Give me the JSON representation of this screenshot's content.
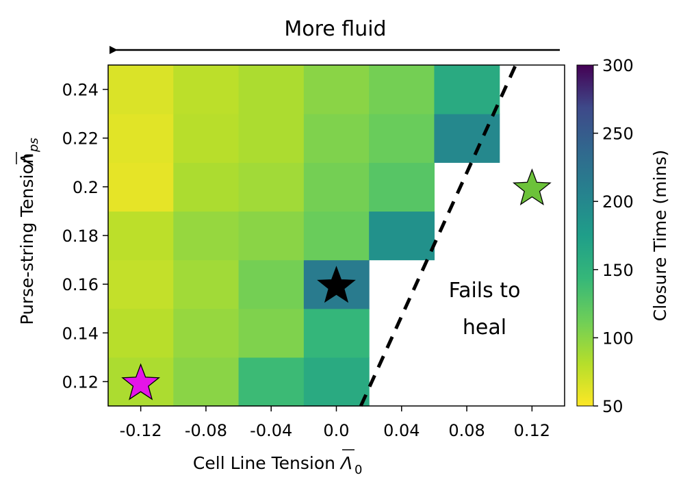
{
  "chart_data": {
    "type": "heatmap",
    "title": "",
    "xlabel": "Cell Line Tension",
    "xlabel_symbol": "Λ",
    "xlabel_subscript": "0",
    "ylabel": "Purse-string Tension",
    "ylabel_symbol": "Λ",
    "ylabel_subscript": "ps",
    "x_ticks": [
      "-0.12",
      "-0.08",
      "-0.04",
      "0.0",
      "0.04",
      "0.08",
      "0.12"
    ],
    "y_ticks": [
      "0.12",
      "0.14",
      "0.16",
      "0.18",
      "0.2",
      "0.22",
      "0.24"
    ],
    "x": [
      -0.12,
      -0.08,
      -0.04,
      0.0,
      0.04,
      0.08,
      0.12
    ],
    "y": [
      0.12,
      0.14,
      0.16,
      0.18,
      0.2,
      0.22,
      0.24
    ],
    "xlim": [
      -0.14,
      0.14
    ],
    "ylim": [
      0.11,
      0.25
    ],
    "values": [
      [
        85,
        100,
        140,
        160,
        null,
        null,
        null
      ],
      [
        80,
        95,
        105,
        145,
        null,
        null,
        null
      ],
      [
        75,
        90,
        110,
        215,
        null,
        null,
        null
      ],
      [
        78,
        95,
        100,
        115,
        190,
        null,
        null
      ],
      [
        60,
        85,
        90,
        110,
        125,
        null,
        null
      ],
      [
        62,
        80,
        85,
        105,
        115,
        200,
        null
      ],
      [
        65,
        78,
        85,
        100,
        110,
        160,
        null
      ]
    ],
    "colorbar": {
      "label": "Closure Time (mins)",
      "min": 50,
      "max": 300,
      "ticks": [
        "50",
        "100",
        "150",
        "200",
        "250",
        "300"
      ],
      "colormap": "viridis_r"
    },
    "annotations": {
      "top_label": "More fluid",
      "region_label_line1": "Fails to",
      "region_label_line2": "heal"
    },
    "boundary_line": [
      [
        0.015,
        0.11
      ],
      [
        0.11,
        0.25
      ]
    ],
    "markers": [
      {
        "x": -0.12,
        "y": 0.12,
        "color": "#e415e8",
        "shape": "star"
      },
      {
        "x": 0.0,
        "y": 0.16,
        "color": "#000000",
        "shape": "star"
      },
      {
        "x": 0.12,
        "y": 0.2,
        "color": "#6cc23a",
        "shape": "star"
      }
    ]
  }
}
